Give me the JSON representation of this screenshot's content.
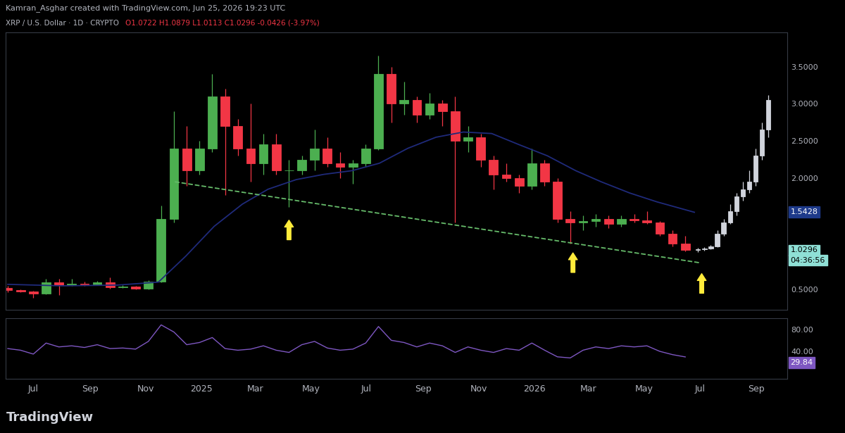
{
  "header": {
    "credit": "Kamran_Asghar created with TradingView.com, Jun 25, 2026 19:23 UTC",
    "symbol": "XRP / U.S. Dollar · 1D · CRYPTO",
    "ohlc": "O1.0722 H1.0879 L1.0113 C1.0296 -0.0426 (-3.97%)",
    "ohlc_color": "#f23645"
  },
  "footer": {
    "brand": "TradingView"
  },
  "chart_data": [
    {
      "type": "candlestick",
      "x": [
        "2024-06-03",
        "2024-06-17",
        "2024-07-01",
        "2024-07-15",
        "2024-07-29",
        "2024-08-12",
        "2024-08-26",
        "2024-09-09",
        "2024-09-23",
        "2024-10-07",
        "2024-10-21",
        "2024-11-04",
        "2024-11-18",
        "2024-12-02",
        "2024-12-16",
        "2024-12-30",
        "2025-01-13",
        "2025-01-27",
        "2025-02-10",
        "2025-02-24",
        "2025-03-10",
        "2025-03-24",
        "2025-04-07",
        "2025-04-21",
        "2025-05-05",
        "2025-05-19",
        "2025-06-02",
        "2025-06-16",
        "2025-06-30",
        "2025-07-14",
        "2025-07-28",
        "2025-08-11",
        "2025-08-25",
        "2025-09-08",
        "2025-09-22",
        "2025-10-06",
        "2025-10-20",
        "2025-11-03",
        "2025-11-17",
        "2025-12-01",
        "2025-12-15",
        "2025-12-29",
        "2026-01-12",
        "2026-01-26",
        "2026-02-09",
        "2026-02-23",
        "2026-03-09",
        "2026-03-23",
        "2026-04-06",
        "2026-04-20",
        "2026-05-04",
        "2026-05-18",
        "2026-06-01",
        "2026-06-15"
      ],
      "open": [
        0.52,
        0.49,
        0.47,
        0.45,
        0.6,
        0.56,
        0.58,
        0.57,
        0.6,
        0.53,
        0.54,
        0.51,
        0.61,
        1.45,
        2.4,
        2.1,
        2.4,
        3.1,
        2.7,
        2.4,
        2.2,
        2.45,
        2.1,
        2.1,
        2.25,
        2.4,
        2.2,
        2.15,
        2.2,
        2.4,
        3.4,
        3.0,
        3.05,
        2.85,
        3.0,
        2.9,
        2.5,
        2.55,
        2.25,
        2.05,
        2.0,
        1.9,
        2.2,
        1.95,
        1.45,
        1.4,
        1.42,
        1.45,
        1.38,
        1.45,
        1.43,
        1.4,
        1.25,
        1.12
      ],
      "high": [
        0.55,
        0.5,
        0.48,
        0.64,
        0.64,
        0.64,
        0.61,
        0.62,
        0.66,
        0.56,
        0.55,
        0.63,
        1.63,
        2.9,
        2.7,
        2.5,
        3.4,
        3.2,
        2.8,
        3.0,
        2.6,
        2.6,
        2.25,
        2.3,
        2.65,
        2.55,
        2.35,
        2.25,
        2.45,
        3.65,
        3.5,
        3.3,
        3.1,
        3.15,
        3.05,
        3.1,
        2.7,
        2.6,
        2.3,
        2.2,
        2.05,
        2.4,
        2.25,
        2.0,
        1.55,
        1.5,
        1.52,
        1.5,
        1.5,
        1.52,
        1.55,
        1.42,
        1.3,
        1.22
      ],
      "low": [
        0.46,
        0.46,
        0.39,
        0.44,
        0.43,
        0.55,
        0.55,
        0.56,
        0.51,
        0.52,
        0.5,
        0.5,
        0.6,
        1.4,
        1.9,
        2.05,
        2.35,
        1.77,
        2.3,
        1.95,
        2.05,
        2.05,
        1.61,
        2.05,
        2.1,
        2.15,
        2.0,
        1.92,
        2.15,
        2.38,
        2.75,
        2.85,
        2.75,
        2.8,
        2.7,
        1.4,
        2.35,
        2.15,
        1.85,
        1.95,
        1.8,
        1.85,
        1.9,
        1.4,
        1.12,
        1.3,
        1.35,
        1.33,
        1.35,
        1.4,
        1.38,
        1.22,
        1.08,
        1.01
      ],
      "close": [
        0.49,
        0.47,
        0.45,
        0.6,
        0.56,
        0.58,
        0.57,
        0.6,
        0.53,
        0.54,
        0.51,
        0.61,
        1.45,
        2.4,
        2.1,
        2.4,
        3.1,
        2.7,
        2.4,
        2.2,
        2.45,
        2.1,
        2.1,
        2.25,
        2.4,
        2.2,
        2.15,
        2.2,
        2.4,
        3.4,
        3.0,
        3.05,
        2.85,
        3.0,
        2.9,
        2.5,
        2.55,
        2.25,
        2.05,
        2.0,
        1.9,
        2.2,
        1.95,
        1.45,
        1.4,
        1.42,
        1.45,
        1.38,
        1.45,
        1.43,
        1.4,
        1.25,
        1.12,
        1.03
      ],
      "up_color": "#4caf50",
      "down_color": "#f23645",
      "projection": {
        "x": [
          "2026-06-29",
          "2026-07-06",
          "2026-07-13",
          "2026-07-20",
          "2026-07-27",
          "2026-08-03",
          "2026-08-10",
          "2026-08-17",
          "2026-08-24",
          "2026-08-31",
          "2026-09-07",
          "2026-09-14"
        ],
        "open": [
          1.03,
          1.04,
          1.05,
          1.08,
          1.25,
          1.4,
          1.55,
          1.75,
          1.85,
          1.95,
          2.3,
          2.65
        ],
        "high": [
          1.06,
          1.07,
          1.1,
          1.3,
          1.45,
          1.65,
          1.8,
          1.95,
          2.1,
          2.4,
          2.75,
          3.12
        ],
        "low": [
          1.0,
          1.02,
          1.04,
          1.07,
          1.22,
          1.38,
          1.5,
          1.7,
          1.8,
          1.9,
          2.25,
          2.55
        ],
        "close": [
          1.04,
          1.05,
          1.08,
          1.25,
          1.4,
          1.55,
          1.75,
          1.85,
          1.95,
          2.3,
          2.65,
          3.05
        ],
        "up_color": "#d1d4dc",
        "down_color": "#787b86"
      },
      "series": [
        {
          "type": "line",
          "color": "#1f2a7a",
          "line_style": "solid",
          "x": [
            "2024-06-03",
            "2024-08-01",
            "2024-10-01",
            "2024-11-15",
            "2024-12-15",
            "2025-01-15",
            "2025-02-15",
            "2025-03-15",
            "2025-04-15",
            "2025-05-15",
            "2025-06-15",
            "2025-07-15",
            "2025-08-15",
            "2025-09-15",
            "2025-10-15",
            "2025-11-15",
            "2025-12-15",
            "2026-01-15",
            "2026-02-15",
            "2026-03-15",
            "2026-04-15",
            "2026-05-15",
            "2026-06-25"
          ],
          "values": [
            0.57,
            0.55,
            0.56,
            0.6,
            0.95,
            1.35,
            1.65,
            1.85,
            1.98,
            2.05,
            2.1,
            2.2,
            2.4,
            2.55,
            2.62,
            2.6,
            2.45,
            2.3,
            2.1,
            1.95,
            1.8,
            1.68,
            1.54
          ]
        },
        {
          "type": "line",
          "color": "#66bb6a",
          "line_style": "dashed",
          "x": [
            "2024-12-03",
            "2026-07-01"
          ],
          "values": [
            1.95,
            0.86
          ]
        }
      ],
      "arrows": {
        "color": "#ffeb3b",
        "x": [
          "2025-04-07",
          "2026-02-12",
          "2026-07-03"
        ],
        "values": [
          1.46,
          1.02,
          0.74
        ]
      },
      "price_labels": [
        {
          "value": 1.5428,
          "label": "1.5428",
          "color": "#1e3a8a"
        },
        {
          "value": 1.0296,
          "label": "1.0296",
          "color": "#8fe0d6",
          "countdown": "04:36:56"
        }
      ],
      "xlim": [
        "2024-06-01",
        "2026-10-05"
      ],
      "ylim": [
        0.23,
        3.96
      ],
      "yticks": [
        {
          "value": 0.5,
          "label": "0.5000"
        },
        {
          "value": 2.0,
          "label": "2.0000"
        },
        {
          "value": 2.5,
          "label": "2.5000"
        },
        {
          "value": 3.0,
          "label": "3.0000"
        },
        {
          "value": 3.5,
          "label": "3.5000"
        }
      ],
      "grid": false
    },
    {
      "type": "line",
      "color": "#7e57c2",
      "x": [
        "2024-06-03",
        "2024-06-17",
        "2024-07-01",
        "2024-07-15",
        "2024-07-29",
        "2024-08-12",
        "2024-08-26",
        "2024-09-09",
        "2024-09-23",
        "2024-10-07",
        "2024-10-21",
        "2024-11-04",
        "2024-11-18",
        "2024-12-02",
        "2024-12-16",
        "2024-12-30",
        "2025-01-13",
        "2025-01-27",
        "2025-02-10",
        "2025-02-24",
        "2025-03-10",
        "2025-03-24",
        "2025-04-07",
        "2025-04-21",
        "2025-05-05",
        "2025-05-19",
        "2025-06-02",
        "2025-06-16",
        "2025-06-30",
        "2025-07-14",
        "2025-07-28",
        "2025-08-11",
        "2025-08-25",
        "2025-09-08",
        "2025-09-22",
        "2025-10-06",
        "2025-10-20",
        "2025-11-03",
        "2025-11-17",
        "2025-12-01",
        "2025-12-15",
        "2025-12-29",
        "2026-01-12",
        "2026-01-26",
        "2026-02-09",
        "2026-02-23",
        "2026-03-09",
        "2026-03-23",
        "2026-04-06",
        "2026-04-20",
        "2026-05-04",
        "2026-05-18",
        "2026-06-01",
        "2026-06-15"
      ],
      "values": [
        45,
        42,
        35,
        55,
        48,
        50,
        47,
        52,
        45,
        46,
        44,
        58,
        88,
        75,
        52,
        56,
        65,
        45,
        42,
        44,
        50,
        42,
        38,
        52,
        58,
        46,
        42,
        44,
        55,
        85,
        60,
        56,
        48,
        55,
        50,
        38,
        48,
        42,
        38,
        45,
        42,
        55,
        42,
        30,
        28,
        42,
        48,
        45,
        50,
        48,
        50,
        40,
        34,
        29.84
      ],
      "price_labels": [
        {
          "value": 29.84,
          "label": "29.84",
          "color": "#7e57c2"
        }
      ],
      "xlim": [
        "2024-06-01",
        "2026-10-05"
      ],
      "xticks": [
        {
          "value": "2024-07-01",
          "label": "Jul"
        },
        {
          "value": "2024-09-01",
          "label": "Sep"
        },
        {
          "value": "2024-11-01",
          "label": "Nov"
        },
        {
          "value": "2025-01-01",
          "label": "2025"
        },
        {
          "value": "2025-03-01",
          "label": "Mar"
        },
        {
          "value": "2025-05-01",
          "label": "May"
        },
        {
          "value": "2025-07-01",
          "label": "Jul"
        },
        {
          "value": "2025-09-01",
          "label": "Sep"
        },
        {
          "value": "2025-11-01",
          "label": "Nov"
        },
        {
          "value": "2026-01-01",
          "label": "2026"
        },
        {
          "value": "2026-03-01",
          "label": "Mar"
        },
        {
          "value": "2026-05-01",
          "label": "May"
        },
        {
          "value": "2026-07-01",
          "label": "Jul"
        },
        {
          "value": "2026-09-01",
          "label": "Sep"
        }
      ],
      "ylim": [
        -10,
        100
      ],
      "yticks": [
        {
          "value": 40,
          "label": "40.00"
        },
        {
          "value": 80,
          "label": "80.00"
        }
      ],
      "grid": false
    }
  ]
}
